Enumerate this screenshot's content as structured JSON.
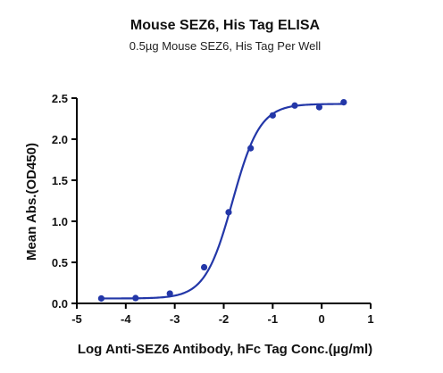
{
  "chart_data": {
    "type": "scatter",
    "title": "Mouse SEZ6, His Tag ELISA",
    "subtitle": "0.5µg Mouse SEZ6, His Tag Per Well",
    "xlabel": "Log Anti-SEZ6 Antibody, hFc Tag Conc.(µg/ml)",
    "ylabel": "Mean Abs.(OD450)",
    "xlim": [
      -5,
      1
    ],
    "ylim": [
      0,
      2.5
    ],
    "x_ticks": [
      -5,
      -4,
      -3,
      -2,
      -1,
      0,
      1
    ],
    "y_ticks": [
      0.0,
      0.5,
      1.0,
      1.5,
      2.0,
      2.5
    ],
    "x_tick_labels": [
      "-5",
      "-4",
      "-3",
      "-2",
      "-1",
      "0",
      "1"
    ],
    "y_tick_labels": [
      "0.0",
      "0.5",
      "1.0",
      "1.5",
      "2.0",
      "2.5"
    ],
    "grid": false,
    "color": "#2337a8",
    "series": [
      {
        "x": [
          -4.5,
          -3.8,
          -3.1,
          -2.4,
          -1.9,
          -1.45,
          -1.0,
          -0.55,
          -0.05,
          0.45
        ],
        "y": [
          0.06,
          0.065,
          0.12,
          0.44,
          1.11,
          1.89,
          2.29,
          2.41,
          2.39,
          2.45
        ]
      }
    ],
    "fit_curve": {
      "model": "4PL",
      "bottom": 0.06,
      "top": 2.43,
      "log_ec50": -1.82,
      "hill_slope": 1.55
    }
  }
}
